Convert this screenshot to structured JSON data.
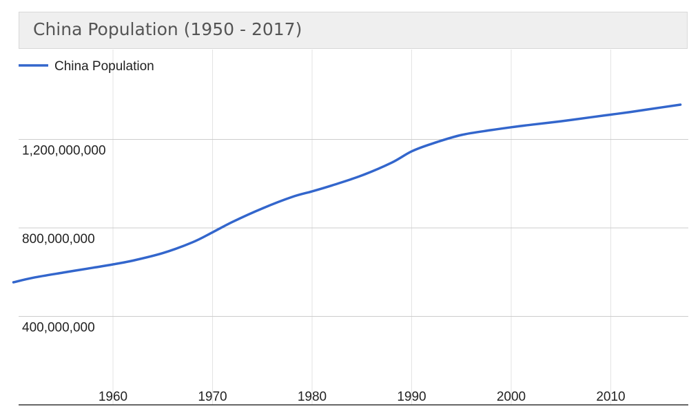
{
  "chart_data": {
    "type": "line",
    "title": "China Population (1950 - 2017)",
    "xlabel": "",
    "ylabel": "",
    "xlim": [
      1950,
      2017
    ],
    "ylim": [
      0,
      1500000000
    ],
    "x_ticks": [
      1960,
      1970,
      1980,
      1990,
      2000,
      2010
    ],
    "x_tick_labels": [
      "1960",
      "1970",
      "1980",
      "1990",
      "2000",
      "2010"
    ],
    "y_ticks": [
      400000000,
      800000000,
      1200000000
    ],
    "y_tick_labels": [
      "400,000,000",
      "800,000,000",
      "1,200,000,000"
    ],
    "grid": true,
    "legend": {
      "position": "top-left",
      "entries": [
        "China Population"
      ]
    },
    "series": [
      {
        "name": "China Population",
        "color": "#3366cc",
        "x": [
          1950,
          1952,
          1955,
          1958,
          1960,
          1962,
          1965,
          1968,
          1970,
          1972,
          1975,
          1978,
          1980,
          1982,
          1985,
          1988,
          1990,
          1992,
          1995,
          1998,
          2000,
          2002,
          2005,
          2008,
          2010,
          2012,
          2015,
          2017
        ],
        "values": [
          554000000,
          575000000,
          598000000,
          620000000,
          635000000,
          652000000,
          686000000,
          735000000,
          780000000,
          827000000,
          888000000,
          940000000,
          965000000,
          992000000,
          1037000000,
          1095000000,
          1146000000,
          1180000000,
          1220000000,
          1242000000,
          1255000000,
          1266000000,
          1282000000,
          1300000000,
          1312000000,
          1324000000,
          1344000000,
          1357000000
        ]
      }
    ]
  }
}
